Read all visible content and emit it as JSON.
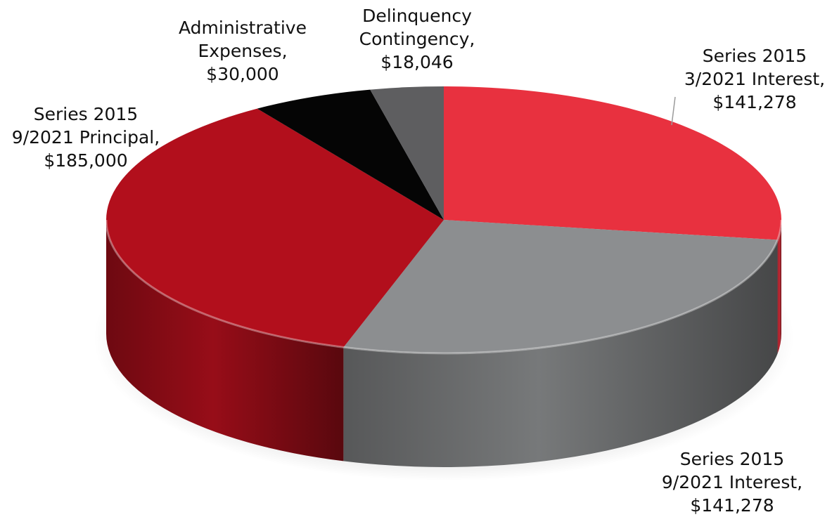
{
  "chart_data": {
    "type": "pie",
    "title": "",
    "slices": [
      {
        "label_lines": [
          "Series 2015",
          "3/2021 Interest,",
          "$141,278"
        ],
        "value": 141278,
        "color": "#e8313f"
      },
      {
        "label_lines": [
          "Series 2015",
          "9/2021 Interest,",
          "$141,278"
        ],
        "value": 141278,
        "color": "#8c8e90"
      },
      {
        "label_lines": [
          "Series 2015",
          "9/2021 Principal,",
          "$185,000"
        ],
        "value": 185000,
        "color": "#b20f1c"
      },
      {
        "label_lines": [
          "Administrative",
          "Expenses,",
          "$30,000"
        ],
        "value": 30000,
        "color": "#050505"
      },
      {
        "label_lines": [
          "Delinquency",
          "Contingency,",
          "$18,046"
        ],
        "value": 18046,
        "color": "#5e5e60"
      }
    ],
    "legend": "none",
    "style": "3d-tilted"
  }
}
